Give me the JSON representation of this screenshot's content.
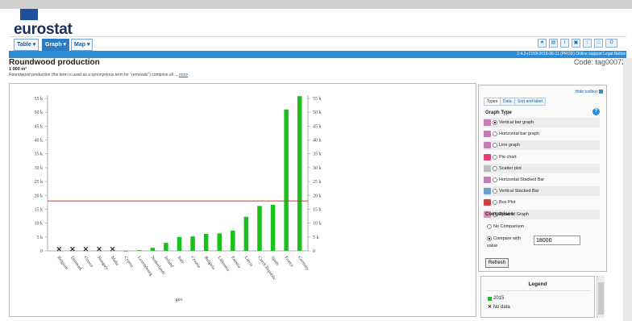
{
  "header": {
    "logo_text": "eurostat",
    "tabs": [
      {
        "label": "Table ▾"
      },
      {
        "label": "Graph ▾"
      },
      {
        "label": "Map ▾"
      }
    ],
    "version_text": "2.4.2-r2159-2016-06-11 (PROD)   Online support   Legal Notice",
    "icons": [
      "bookmark-icon",
      "print-icon",
      "info-icon",
      "save-icon",
      "download-icon",
      "frame-icon",
      "demo-icon"
    ]
  },
  "page": {
    "title": "Roundwood production",
    "code": "Code: tag00072",
    "unit": "1 000 m³",
    "description": "Roundwood production (the term is used as a synonymous term for \"removals\") comprise all ...",
    "more_link": "more"
  },
  "chart_data": {
    "type": "bar",
    "xlabel": "geo",
    "ylim": [
      0,
      55000
    ],
    "yticks": [
      "0",
      "5 k",
      "10 k",
      "15 k",
      "20 k",
      "25 k",
      "30 k",
      "35 k",
      "40 k",
      "45 k",
      "50 k",
      "55 k"
    ],
    "categories": [
      "Belgium",
      "Denmark",
      "Greece",
      "Hungary",
      "Malta",
      "Cyprus",
      "Luxembourg",
      "Netherlands",
      "Ireland",
      "Italy",
      "Croatia",
      "Bulgaria",
      "Lithuania",
      "Estonia",
      "Latvia",
      "Czech Republic",
      "Spain",
      "France",
      "Germany"
    ],
    "series": [
      {
        "name": "2015",
        "color": "#19c21a",
        "values": [
          null,
          null,
          null,
          null,
          null,
          10,
          250,
          1100,
          2900,
          5000,
          5200,
          6100,
          6300,
          7300,
          12300,
          16200,
          16600,
          51000,
          55800
        ]
      }
    ],
    "missing_marker": "x",
    "comparison_line": {
      "value": 18000,
      "color": "#e03030"
    }
  },
  "toolbox": {
    "hide_label": "Hide toolbox",
    "tabs": [
      "Types",
      "Data",
      "Sort and label"
    ],
    "graph_type_title": "Graph Type",
    "graph_types": [
      {
        "label": "Vertical bar graph",
        "selected": true,
        "icon": "vertical-bar-icon"
      },
      {
        "label": "Horizontal bar graph",
        "selected": false,
        "icon": "horizontal-bar-icon"
      },
      {
        "label": "Line graph",
        "selected": false,
        "icon": "line-graph-icon"
      },
      {
        "label": "Pie chart",
        "selected": false,
        "icon": "pie-chart-icon"
      },
      {
        "label": "Scatter plot",
        "selected": false,
        "icon": "scatter-plot-icon"
      },
      {
        "label": "Horizontal Stacked Bar",
        "selected": false,
        "icon": "horizontal-stacked-icon"
      },
      {
        "label": "Vertical Stacked Bar",
        "selected": false,
        "icon": "vertical-stacked-icon"
      },
      {
        "label": "Box Plot",
        "selected": false,
        "icon": "box-plot-icon"
      },
      {
        "label": "Pyramid Graph",
        "selected": false,
        "icon": "pyramid-graph-icon"
      }
    ],
    "comparison_title": "Comparison",
    "no_comparison_label": "No Comparison",
    "compare_with_label": "Compare with",
    "compare_value": "18000",
    "value_label": "value",
    "refresh_label": "Refresh"
  },
  "legend": {
    "title": "Legend",
    "series_label": "2015",
    "nodata_label": "No data"
  }
}
